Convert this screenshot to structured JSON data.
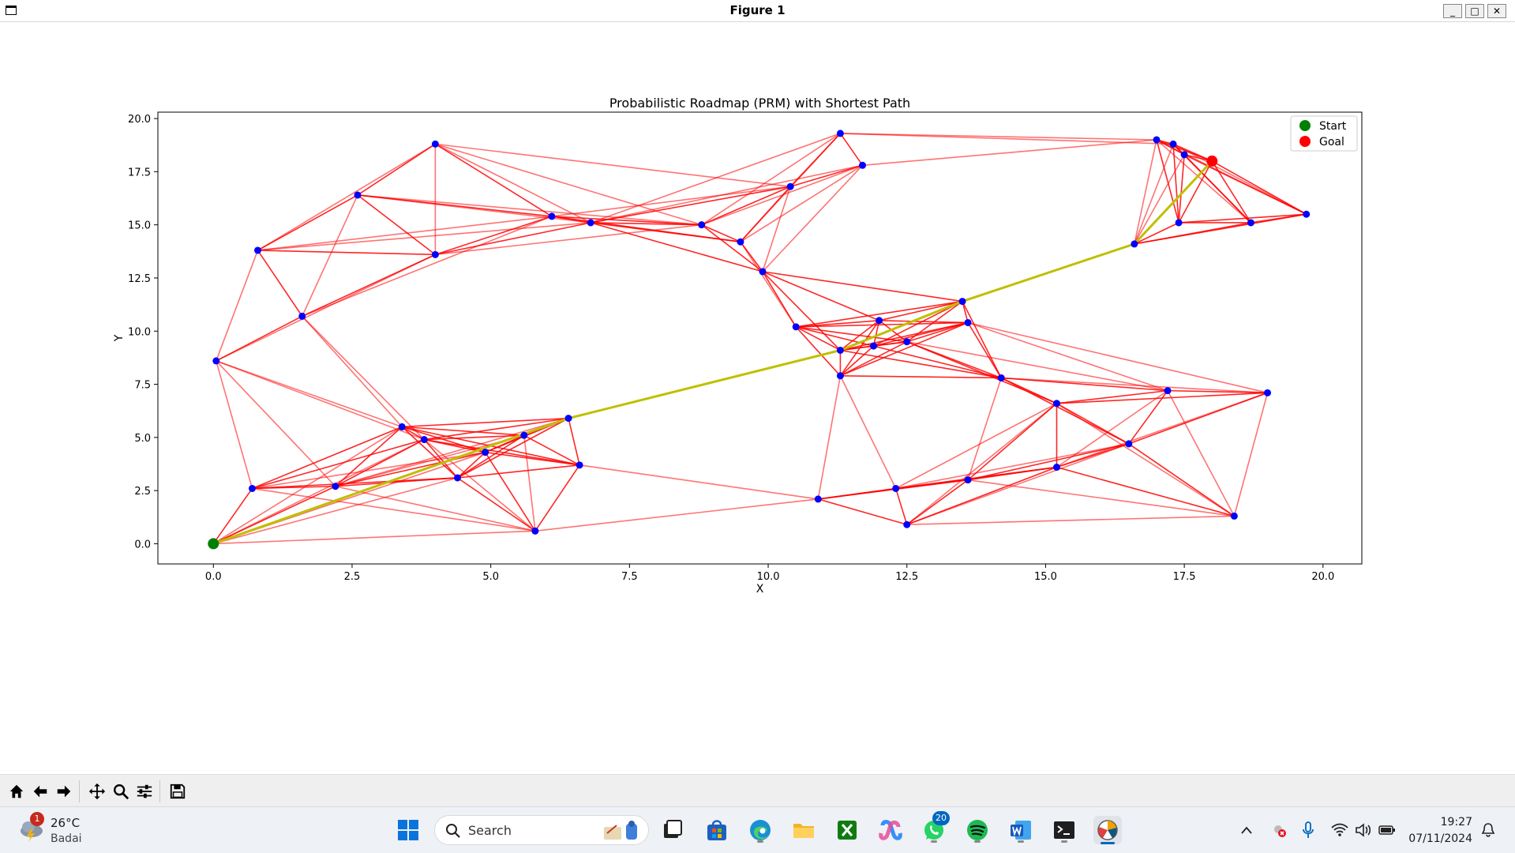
{
  "window": {
    "title": "Figure 1",
    "min_label": "_",
    "max_label": "□",
    "close_label": "✕"
  },
  "chart_data": {
    "type": "scatter",
    "title": "Probabilistic Roadmap (PRM) with Shortest Path",
    "xlabel": "X",
    "ylabel": "Y",
    "xlim": [
      -1.0,
      20.7
    ],
    "ylim": [
      -0.95,
      20.3
    ],
    "xticks": [
      0.0,
      2.5,
      5.0,
      7.5,
      10.0,
      12.5,
      15.0,
      17.5,
      20.0
    ],
    "xtick_labels": [
      "0.0",
      "2.5",
      "5.0",
      "7.5",
      "10.0",
      "12.5",
      "15.0",
      "17.5",
      "20.0"
    ],
    "yticks": [
      0.0,
      2.5,
      5.0,
      7.5,
      10.0,
      12.5,
      15.0,
      17.5,
      20.0
    ],
    "ytick_labels": [
      "0.0",
      "2.5",
      "5.0",
      "7.5",
      "10.0",
      "12.5",
      "15.0",
      "17.5",
      "20.0"
    ],
    "grid": false,
    "legend_position": "top-right",
    "legend": [
      {
        "label": "Start",
        "color": "#008000"
      },
      {
        "label": "Goal",
        "color": "#ff0000"
      }
    ],
    "start": [
      0.0,
      0.0
    ],
    "goal": [
      18.0,
      18.0
    ],
    "node_color": "#0000ff",
    "edge_color": "#ff0000",
    "path_color": "#bfbf00",
    "nodes": [
      [
        0.7,
        2.6
      ],
      [
        2.2,
        2.7
      ],
      [
        3.4,
        5.5
      ],
      [
        3.8,
        4.9
      ],
      [
        4.4,
        3.1
      ],
      [
        4.9,
        4.3
      ],
      [
        5.6,
        5.1
      ],
      [
        5.8,
        0.6
      ],
      [
        6.4,
        5.9
      ],
      [
        6.6,
        3.7
      ],
      [
        0.05,
        8.6
      ],
      [
        1.6,
        10.7
      ],
      [
        0.8,
        13.8
      ],
      [
        2.6,
        16.4
      ],
      [
        4.0,
        18.8
      ],
      [
        4.0,
        13.6
      ],
      [
        6.1,
        15.4
      ],
      [
        6.8,
        15.1
      ],
      [
        8.8,
        15.0
      ],
      [
        9.5,
        14.2
      ],
      [
        9.9,
        12.8
      ],
      [
        10.4,
        16.8
      ],
      [
        10.5,
        10.2
      ],
      [
        11.3,
        19.3
      ],
      [
        11.7,
        17.8
      ],
      [
        11.3,
        7.9
      ],
      [
        11.3,
        9.1
      ],
      [
        11.9,
        9.3
      ],
      [
        12.0,
        10.5
      ],
      [
        12.5,
        9.5
      ],
      [
        13.5,
        11.4
      ],
      [
        13.6,
        10.4
      ],
      [
        14.2,
        7.8
      ],
      [
        15.2,
        6.6
      ],
      [
        15.2,
        3.6
      ],
      [
        16.5,
        4.7
      ],
      [
        16.6,
        14.1
      ],
      [
        17.0,
        19.0
      ],
      [
        17.3,
        18.8
      ],
      [
        17.5,
        18.3
      ],
      [
        17.4,
        15.1
      ],
      [
        17.2,
        7.2
      ],
      [
        18.7,
        15.1
      ],
      [
        19.7,
        15.5
      ],
      [
        19.0,
        7.1
      ],
      [
        18.4,
        1.3
      ],
      [
        10.9,
        2.1
      ],
      [
        12.3,
        2.6
      ],
      [
        12.5,
        0.9
      ],
      [
        13.6,
        3.0
      ]
    ],
    "path": [
      [
        0.0,
        0.0
      ],
      [
        6.4,
        5.9
      ],
      [
        11.3,
        9.1
      ],
      [
        13.5,
        11.4
      ],
      [
        16.6,
        14.1
      ],
      [
        18.0,
        18.0
      ]
    ]
  },
  "toolbar": {
    "tools": [
      "home-icon",
      "back-arrow-icon",
      "forward-arrow-icon",
      "pan-icon",
      "zoom-icon",
      "configure-subplots-icon",
      "save-icon"
    ]
  },
  "taskbar": {
    "weather_temp": "26°C",
    "weather_desc": "Badai",
    "weather_badge": "1",
    "search_placeholder": "Search",
    "whatsapp_badge": "20",
    "time": "19:27",
    "date": "07/11/2024"
  }
}
